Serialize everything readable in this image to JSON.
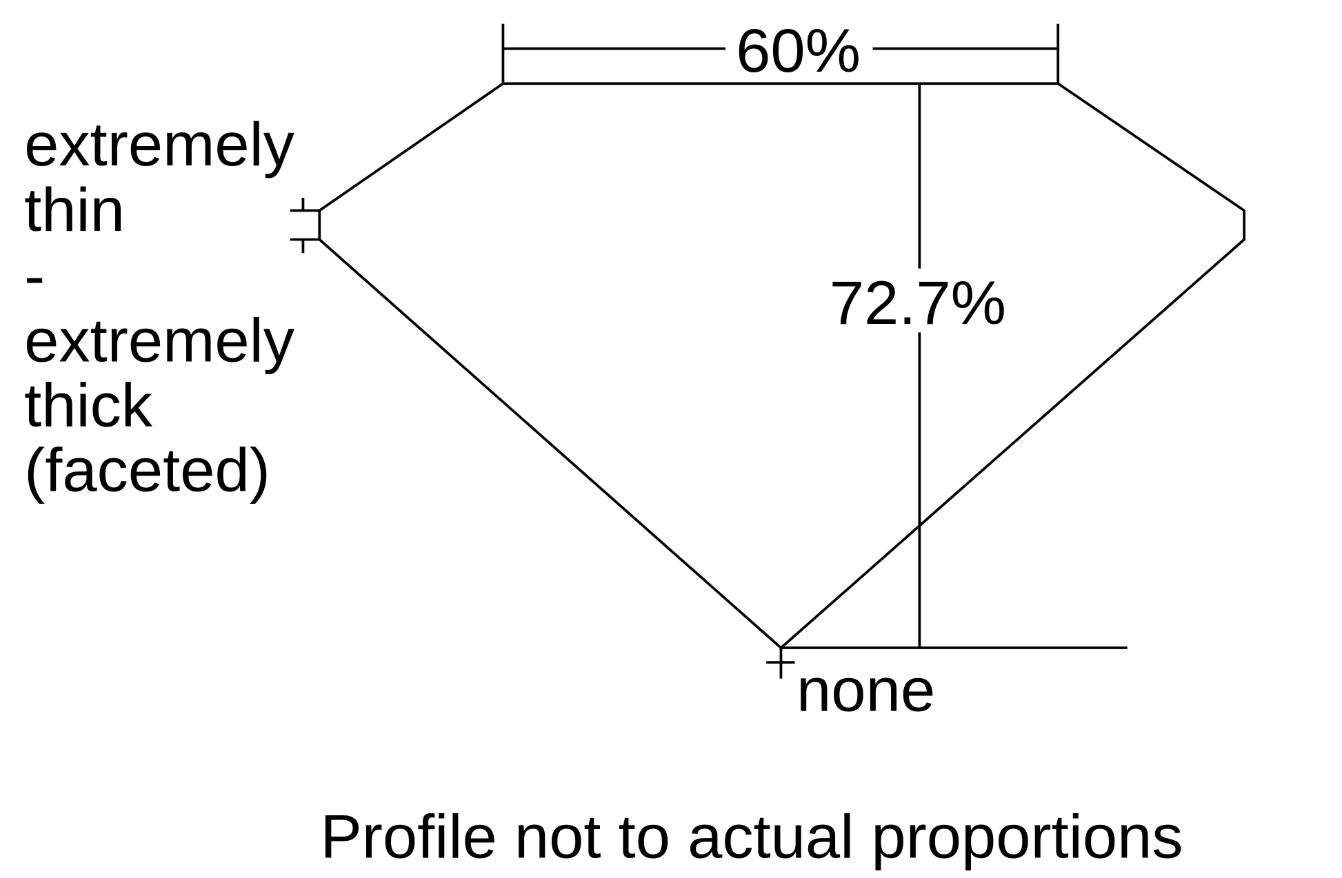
{
  "diagram": {
    "table_percent_label": "60%",
    "depth_percent_label": "72.7%",
    "girdle_label_lines": [
      "extremely",
      "thin",
      "-",
      "extremely",
      "thick",
      "(faceted)"
    ],
    "culet_label": "none",
    "caption": "Profile not to actual proportions",
    "line_color": "#000000",
    "background_color": "#ffffff"
  }
}
